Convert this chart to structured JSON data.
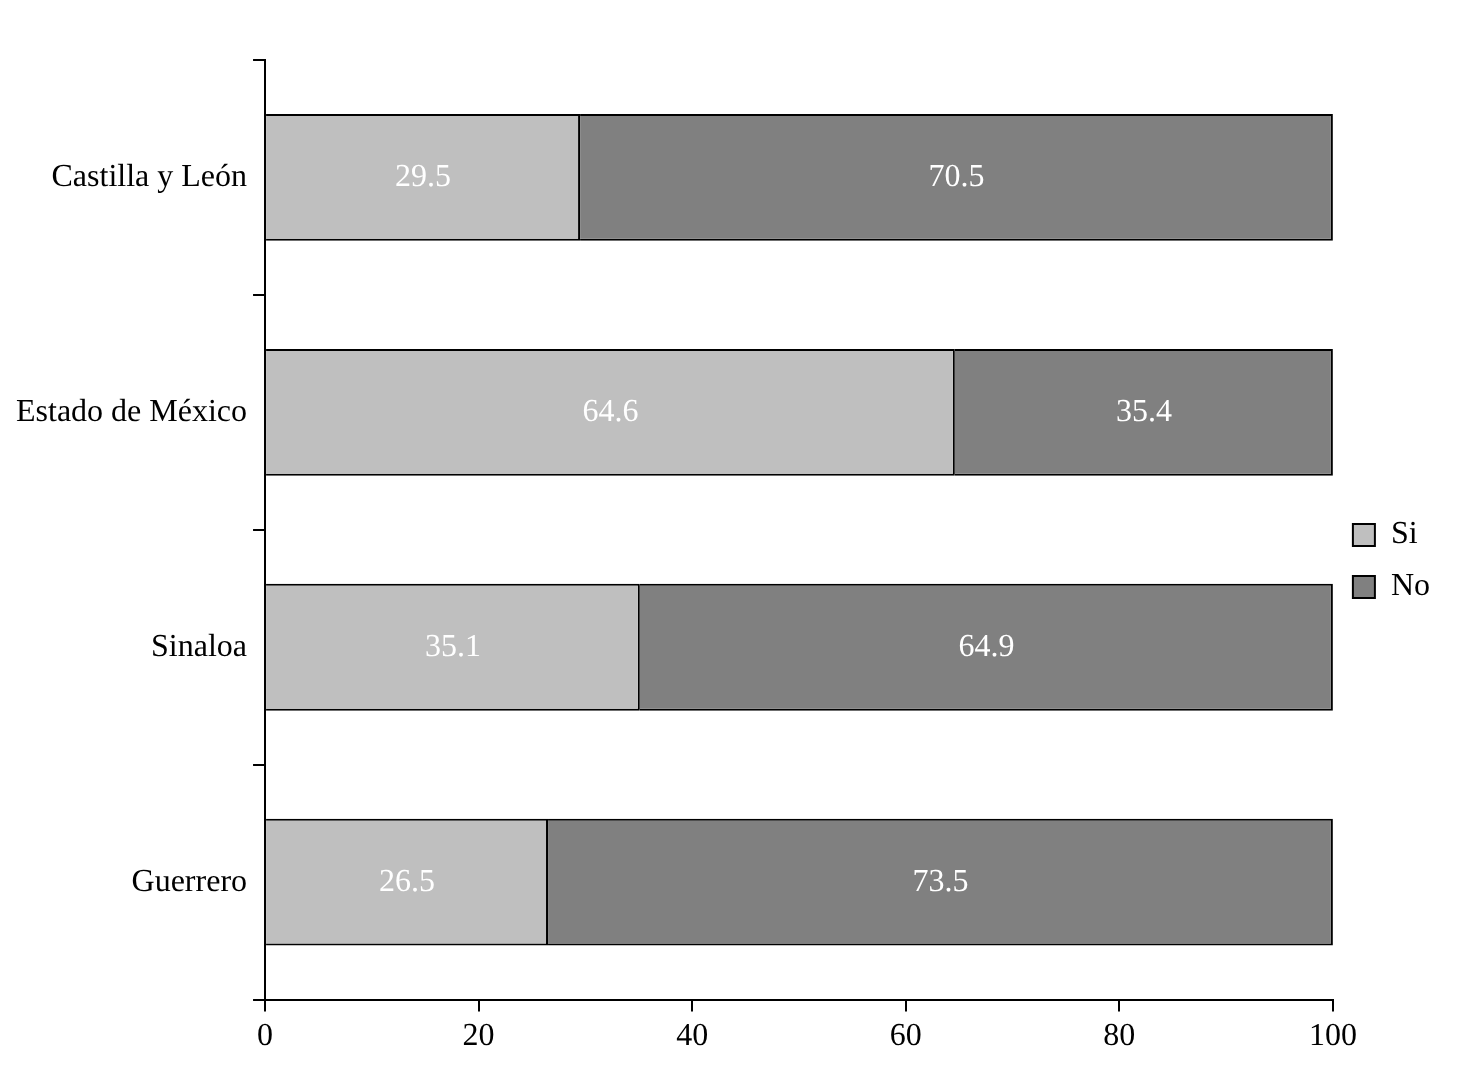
{
  "chart_data": {
    "type": "bar",
    "orientation": "horizontal",
    "stacked": true,
    "categories": [
      "Castilla y León",
      "Estado de México",
      "Sinaloa",
      "Guerrero"
    ],
    "series": [
      {
        "name": "Si",
        "color": "#bfbfbf",
        "values": [
          29.5,
          64.6,
          35.1,
          26.5
        ]
      },
      {
        "name": "No",
        "color": "#808080",
        "values": [
          70.5,
          35.4,
          64.9,
          73.5
        ]
      }
    ],
    "xlim": [
      0,
      100
    ],
    "xticks": [
      0,
      20,
      40,
      60,
      80,
      100
    ],
    "grid": false,
    "legend": "right",
    "data_labels": true
  }
}
